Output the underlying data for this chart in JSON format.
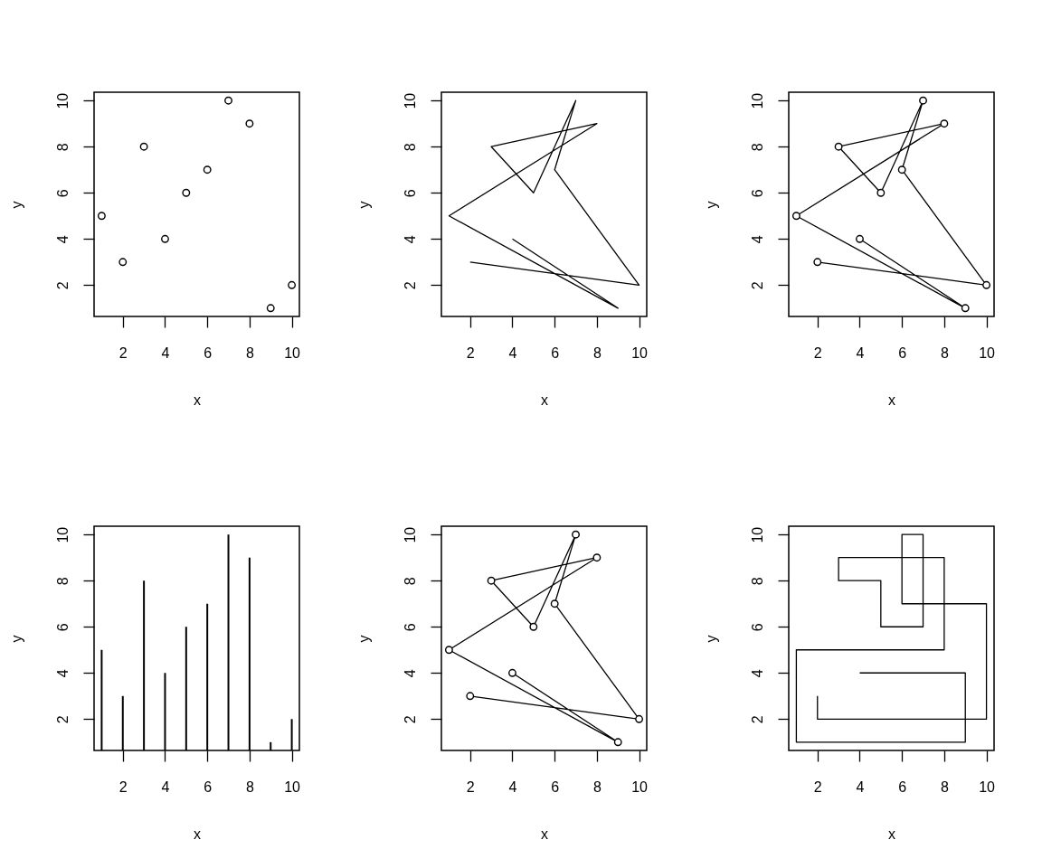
{
  "chart_data": [
    {
      "type": "scatter",
      "xlabel": "x",
      "ylabel": "y",
      "x": [
        4,
        9,
        1,
        8,
        3,
        5,
        7,
        6,
        10,
        2
      ],
      "series": [
        {
          "color": "#000000",
          "values": [
            4,
            1,
            5,
            9,
            8,
            6,
            10,
            7,
            2,
            3
          ]
        }
      ],
      "xlim": [
        0.64,
        10.36
      ],
      "ylim": [
        0.64,
        10.36
      ],
      "xticks": [
        2,
        4,
        6,
        8,
        10
      ],
      "yticks": [
        2,
        4,
        6,
        8,
        10
      ],
      "grid": false,
      "marker": "circle"
    },
    {
      "type": "line",
      "xlabel": "x",
      "ylabel": "y",
      "x": [
        4,
        9,
        1,
        8,
        3,
        5,
        7,
        6,
        10,
        2
      ],
      "series": [
        {
          "color": "#000000",
          "values": [
            4,
            1,
            5,
            9,
            8,
            6,
            10,
            7,
            2,
            3
          ]
        }
      ],
      "xlim": [
        0.64,
        10.36
      ],
      "ylim": [
        0.64,
        10.36
      ],
      "xticks": [
        2,
        4,
        6,
        8,
        10
      ],
      "yticks": [
        2,
        4,
        6,
        8,
        10
      ],
      "grid": false
    },
    {
      "type": "line",
      "xlabel": "x",
      "ylabel": "y",
      "x": [
        4,
        9,
        1,
        8,
        3,
        5,
        7,
        6,
        10,
        2
      ],
      "series": [
        {
          "color": "#000000",
          "values": [
            4,
            1,
            5,
            9,
            8,
            6,
            10,
            7,
            2,
            3
          ]
        }
      ],
      "xlim": [
        0.64,
        10.36
      ],
      "ylim": [
        0.64,
        10.36
      ],
      "xticks": [
        2,
        4,
        6,
        8,
        10
      ],
      "yticks": [
        2,
        4,
        6,
        8,
        10
      ],
      "grid": false,
      "marker": "circle"
    },
    {
      "type": "bar",
      "xlabel": "x",
      "ylabel": "y",
      "x": [
        1,
        2,
        3,
        4,
        5,
        6,
        7,
        8,
        9,
        10
      ],
      "series": [
        {
          "color": "#000000",
          "values": [
            5,
            3,
            8,
            4,
            6,
            7,
            10,
            9,
            1,
            2
          ]
        }
      ],
      "xlim": [
        0.64,
        10.36
      ],
      "ylim": [
        0.64,
        10.36
      ],
      "xticks": [
        2,
        4,
        6,
        8,
        10
      ],
      "yticks": [
        2,
        4,
        6,
        8,
        10
      ],
      "grid": false
    },
    {
      "type": "line",
      "xlabel": "x",
      "ylabel": "y",
      "x": [
        4,
        9,
        1,
        8,
        3,
        5,
        7,
        6,
        10,
        2
      ],
      "series": [
        {
          "color": "#000000",
          "values": [
            4,
            1,
            5,
            9,
            8,
            6,
            10,
            7,
            2,
            3
          ]
        }
      ],
      "xlim": [
        0.64,
        10.36
      ],
      "ylim": [
        0.64,
        10.36
      ],
      "xticks": [
        2,
        4,
        6,
        8,
        10
      ],
      "yticks": [
        2,
        4,
        6,
        8,
        10
      ],
      "grid": false,
      "marker": "circle"
    },
    {
      "type": "step",
      "xlabel": "x",
      "ylabel": "y",
      "x": [
        4,
        9,
        1,
        8,
        3,
        5,
        7,
        6,
        10,
        2
      ],
      "series": [
        {
          "color": "#000000",
          "values": [
            4,
            1,
            5,
            9,
            8,
            6,
            10,
            7,
            2,
            3
          ]
        }
      ],
      "xlim": [
        0.64,
        10.36
      ],
      "ylim": [
        0.64,
        10.36
      ],
      "xticks": [
        2,
        4,
        6,
        8,
        10
      ],
      "yticks": [
        2,
        4,
        6,
        8,
        10
      ],
      "grid": false
    }
  ]
}
